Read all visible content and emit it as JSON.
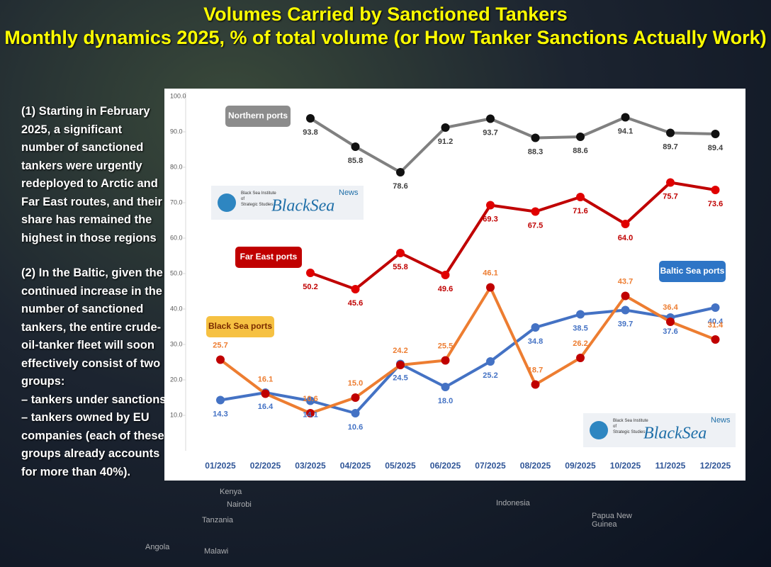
{
  "chart_data": {
    "type": "line",
    "title": "Volumes Carried by Sanctioned Tankers",
    "subtitle": "Monthly dynamics 2025, % of total volume (or How Tanker Sanctions Actually Work)",
    "categories": [
      "01/2025",
      "02/2025",
      "03/2025",
      "04/2025",
      "05/2025",
      "06/2025",
      "07/2025",
      "08/2025",
      "09/2025",
      "10/2025",
      "11/2025",
      "12/2025"
    ],
    "ylim": [
      0,
      100
    ],
    "yticks": [
      {
        "value": 10,
        "label": "10.0"
      },
      {
        "value": 20,
        "label": "20.0"
      },
      {
        "value": 30,
        "label": "30.0"
      },
      {
        "value": 40,
        "label": "40.0"
      },
      {
        "value": 50,
        "label": "50.0"
      },
      {
        "value": 60,
        "label": "60.0"
      },
      {
        "value": 70,
        "label": "70.0"
      },
      {
        "value": 80,
        "label": "80.0"
      },
      {
        "value": 90,
        "label": "90.0"
      },
      {
        "value": 100,
        "label": "100.0"
      }
    ],
    "series": [
      {
        "name": "Northern ports",
        "color": "#808080",
        "marker_color": "#111111",
        "values": [
          null,
          null,
          93.8,
          85.8,
          78.6,
          91.2,
          93.7,
          88.3,
          88.6,
          94.1,
          89.7,
          89.4
        ],
        "value_labels": [
          null,
          null,
          "93.8",
          "85.8",
          "78.6",
          "91.2",
          "93.7",
          "88.3",
          "88.6",
          "94.1",
          "89.7",
          "89.4"
        ]
      },
      {
        "name": "Far East ports",
        "color": "#c00000",
        "marker_color": "#e00000",
        "values": [
          null,
          null,
          50.2,
          45.6,
          55.8,
          49.6,
          69.3,
          67.5,
          71.6,
          64.0,
          75.7,
          73.6
        ],
        "value_labels": [
          null,
          null,
          "50.2",
          "45.6",
          "55.8",
          "49.6",
          "69.3",
          "67.5",
          "71.6",
          "64.0",
          "75.7",
          "73.6"
        ]
      },
      {
        "name": "Baltic Sea ports",
        "color": "#4472c4",
        "marker_color": "#4472c4",
        "values": [
          14.3,
          16.4,
          14.1,
          10.6,
          24.5,
          18.0,
          25.2,
          34.8,
          38.5,
          39.7,
          37.6,
          40.4
        ],
        "value_labels": [
          "14.3",
          "16.4",
          "14.1",
          "10.6",
          "24.5",
          "18.0",
          "25.2",
          "34.8",
          "38.5",
          "39.7",
          "37.6",
          "40.4"
        ]
      },
      {
        "name": "Black Sea ports",
        "color": "#ed7d31",
        "marker_color": "#c00000",
        "values": [
          25.7,
          16.1,
          10.6,
          15.0,
          24.2,
          25.5,
          46.1,
          18.7,
          26.2,
          43.7,
          36.4,
          31.4
        ],
        "value_labels": [
          "25.7",
          "16.1",
          "10.6",
          "15.0",
          "24.2",
          "25.5",
          "46.1",
          "18.7",
          "26.2",
          "43.7",
          "36.4",
          "31.4"
        ]
      }
    ],
    "logo": {
      "institute": "Black Sea Institute of Strategic Studies",
      "brand": "BlackSea",
      "tag": "News"
    }
  },
  "side_text": {
    "paragraph1": "(1) Starting in February 2025, a significant number of sanctioned tankers were urgently redeployed to Arctic and Far East routes, and their share has remained the highest in those regions",
    "paragraph2": "(2) In the Baltic, given the continued increase in the number of sanctioned tankers, the entire crude-oil-tanker fleet will soon effectively consist of two groups:",
    "items": [
      "– tankers under sanctions",
      "– tankers owned by EU companies (each of these groups already accounts for more than 40%)."
    ]
  },
  "map_labels": [
    "Kenya",
    "Nairobi",
    "Tanzania",
    "Angola",
    "Malawi",
    "Indonesia",
    "Papua New Guinea"
  ]
}
